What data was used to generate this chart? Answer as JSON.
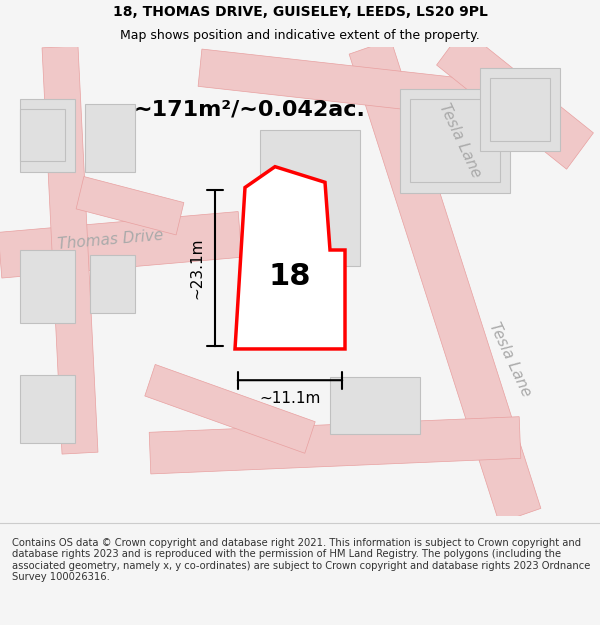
{
  "title": "18, THOMAS DRIVE, GUISELEY, LEEDS, LS20 9PL",
  "subtitle": "Map shows position and indicative extent of the property.",
  "area_label": "~171m²/~0.042ac.",
  "number_label": "18",
  "dim_horizontal": "~11.1m",
  "dim_vertical": "~23.1m",
  "road_label_1": "Thomas Drive",
  "road_label_2": "Tesla Lane",
  "road_label_3": "Tesla Lane",
  "footer": "Contains OS data © Crown copyright and database right 2021. This information is subject to Crown copyright and database rights 2023 and is reproduced with the permission of HM Land Registry. The polygons (including the associated geometry, namely x, y co-ordinates) are subject to Crown copyright and database rights 2023 Ordnance Survey 100026316.",
  "bg_color": "#f5f5f5",
  "map_bg": "#ffffff",
  "plot_fill": "#ffffff",
  "plot_edge": "#ff0000",
  "building_fill": "#e0e0e0",
  "road_color": "#f0c8c8",
  "road_stroke": "#e8a0a0",
  "dim_color": "#333333",
  "text_color": "#888888"
}
